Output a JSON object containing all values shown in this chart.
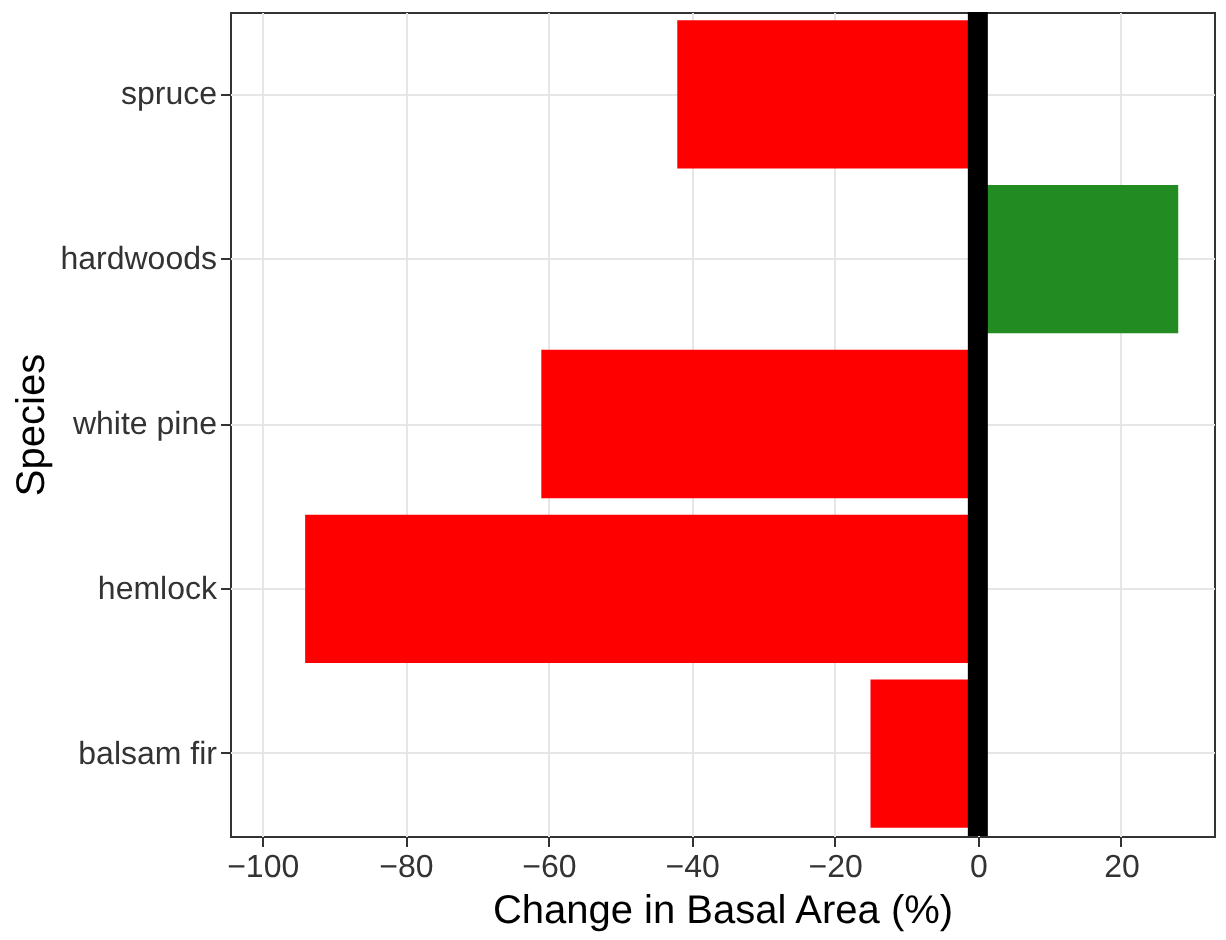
{
  "chart_data": {
    "type": "bar",
    "orientation": "horizontal",
    "xlabel": "Change in Basal Area (%)",
    "ylabel": "Species",
    "categories": [
      "spruce",
      "hardwoods",
      "white pine",
      "hemlock",
      "balsam fir"
    ],
    "values": [
      -42,
      28,
      -61,
      -94,
      -15
    ],
    "colors": [
      "#ff0000",
      "#228b22",
      "#ff0000",
      "#ff0000",
      "#ff0000"
    ],
    "xlim": [
      -104.5,
      33
    ],
    "xticks": [
      -100,
      -80,
      -60,
      -40,
      -20,
      0,
      20
    ],
    "grid": true,
    "ref_lines": [
      {
        "axis": "x",
        "value": 0,
        "color": "#000000"
      }
    ]
  }
}
